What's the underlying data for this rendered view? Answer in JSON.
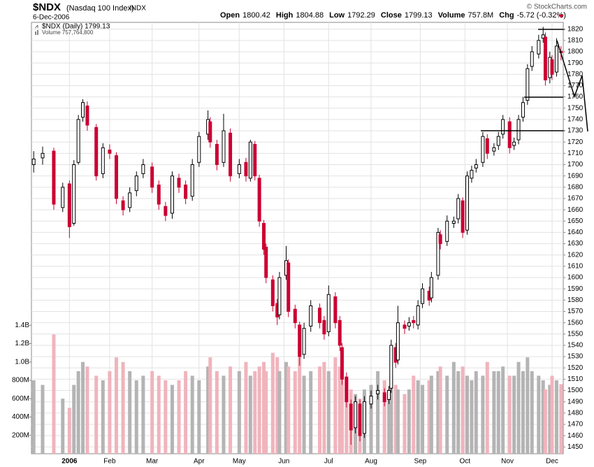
{
  "chart_data": {
    "type": "candlestick",
    "title": "$NDX",
    "subtitle": "(Nasdaq 100 Index)",
    "exchange": "INDX",
    "date": "6-Dec-2006",
    "credit": "© StockCharts.com",
    "stats": [
      {
        "label": "Open",
        "value": "1800.42"
      },
      {
        "label": "High",
        "value": "1804.88"
      },
      {
        "label": "Low",
        "value": "1792.29"
      },
      {
        "label": "Close",
        "value": "1799.13"
      },
      {
        "label": "Volume",
        "value": "757.8M"
      },
      {
        "label": "Chg",
        "value": "-5.72 (-0.32%)"
      }
    ],
    "legend": {
      "price_label": "$NDX (Daily) 1799.13",
      "volume_label": "Volume 757,764,800"
    },
    "x": [
      0,
      4,
      9,
      13,
      16,
      18,
      20,
      22,
      24,
      28,
      31,
      34,
      37,
      40,
      43,
      46,
      49,
      53,
      56,
      59,
      62,
      65,
      68,
      71,
      74,
      78,
      79,
      82,
      85,
      88,
      92,
      95,
      97,
      99,
      101,
      103,
      104,
      107,
      109,
      110,
      113,
      114,
      117,
      119,
      121,
      124,
      128,
      130,
      132,
      135,
      137,
      138,
      140,
      142,
      144,
      146,
      148,
      151,
      154,
      157,
      159,
      160,
      162,
      163,
      166,
      168,
      170,
      172,
      174,
      177,
      178,
      181,
      182,
      185,
      188,
      190,
      192,
      194,
      196,
      198,
      201,
      203,
      206,
      208,
      210,
      213,
      215,
      217,
      219,
      221,
      223,
      226,
      228,
      229,
      231,
      232,
      234,
      236
    ],
    "open": [
      1700,
      1706,
      1712,
      1662,
      1683,
      1648,
      1702,
      1742,
      1752,
      1733,
      1692,
      1713,
      1708,
      1668,
      1662,
      1677,
      1692,
      1698,
      1682,
      1663,
      1657,
      1688,
      1682,
      1672,
      1702,
      1727,
      1738,
      1718,
      1702,
      1728,
      1692,
      1702,
      1688,
      1718,
      1688,
      1648,
      1627,
      1598,
      1577,
      1567,
      1602,
      1613,
      1572,
      1558,
      1532,
      1557,
      1573,
      1562,
      1552,
      1583,
      1562,
      1538,
      1512,
      1488,
      1467,
      1488,
      1462,
      1488,
      1497,
      1498,
      1492,
      1502,
      1538,
      1527,
      1558,
      1557,
      1562,
      1558,
      1577,
      1588,
      1582,
      1602,
      1638,
      1632,
      1648,
      1652,
      1668,
      1642,
      1688,
      1697,
      1702,
      1723,
      1712,
      1717,
      1727,
      1738,
      1717,
      1722,
      1742,
      1757,
      1787,
      1798,
      1812,
      1813,
      1777,
      1793,
      1782,
      1800.42
    ],
    "high": [
      1712,
      1716,
      1715,
      1684,
      1686,
      1704,
      1744,
      1758,
      1756,
      1736,
      1719,
      1718,
      1711,
      1672,
      1680,
      1694,
      1705,
      1702,
      1686,
      1667,
      1694,
      1692,
      1686,
      1705,
      1729,
      1748,
      1742,
      1722,
      1745,
      1732,
      1705,
      1706,
      1722,
      1721,
      1691,
      1651,
      1630,
      1602,
      1581,
      1605,
      1628,
      1616,
      1576,
      1561,
      1560,
      1580,
      1577,
      1566,
      1593,
      1587,
      1566,
      1542,
      1516,
      1492,
      1495,
      1492,
      1495,
      1500,
      1505,
      1502,
      1504,
      1545,
      1542,
      1575,
      1562,
      1565,
      1566,
      1580,
      1595,
      1592,
      1605,
      1644,
      1642,
      1655,
      1654,
      1674,
      1671,
      1694,
      1699,
      1705,
      1729,
      1727,
      1719,
      1729,
      1744,
      1742,
      1724,
      1744,
      1760,
      1789,
      1805,
      1815,
      1822,
      1817,
      1800,
      1797,
      1812,
      1804.88
    ],
    "low": [
      1693,
      1700,
      1660,
      1658,
      1635,
      1646,
      1700,
      1738,
      1730,
      1686,
      1688,
      1705,
      1665,
      1655,
      1658,
      1672,
      1688,
      1675,
      1660,
      1650,
      1652,
      1675,
      1665,
      1668,
      1698,
      1722,
      1715,
      1695,
      1698,
      1685,
      1688,
      1685,
      1685,
      1686,
      1645,
      1620,
      1595,
      1570,
      1558,
      1563,
      1598,
      1565,
      1555,
      1522,
      1528,
      1552,
      1555,
      1545,
      1548,
      1555,
      1535,
      1505,
      1485,
      1452,
      1462,
      1455,
      1458,
      1484,
      1492,
      1486,
      1488,
      1498,
      1520,
      1523,
      1550,
      1553,
      1555,
      1554,
      1573,
      1575,
      1578,
      1598,
      1625,
      1628,
      1644,
      1648,
      1635,
      1638,
      1684,
      1693,
      1698,
      1705,
      1708,
      1713,
      1723,
      1710,
      1713,
      1718,
      1738,
      1753,
      1783,
      1794,
      1808,
      1770,
      1772,
      1775,
      1778,
      1792.29
    ],
    "close": [
      1705,
      1710,
      1665,
      1680,
      1645,
      1700,
      1740,
      1755,
      1735,
      1690,
      1715,
      1710,
      1670,
      1660,
      1675,
      1690,
      1700,
      1680,
      1665,
      1655,
      1690,
      1680,
      1670,
      1700,
      1725,
      1740,
      1720,
      1700,
      1730,
      1690,
      1700,
      1690,
      1720,
      1690,
      1650,
      1625,
      1600,
      1575,
      1565,
      1600,
      1615,
      1570,
      1560,
      1530,
      1555,
      1575,
      1560,
      1550,
      1585,
      1560,
      1540,
      1510,
      1490,
      1465,
      1490,
      1460,
      1490,
      1495,
      1500,
      1490,
      1500,
      1540,
      1525,
      1560,
      1555,
      1560,
      1560,
      1575,
      1590,
      1580,
      1600,
      1640,
      1630,
      1650,
      1650,
      1670,
      1640,
      1690,
      1695,
      1700,
      1725,
      1710,
      1715,
      1725,
      1740,
      1715,
      1720,
      1740,
      1755,
      1785,
      1800,
      1810,
      1815,
      1775,
      1795,
      1780,
      1805,
      1799.13
    ],
    "volume": [
      800,
      750,
      1300,
      600,
      500,
      750,
      900,
      1000,
      950,
      850,
      800,
      900,
      1050,
      1000,
      900,
      800,
      850,
      900,
      850,
      800,
      750,
      800,
      900,
      850,
      800,
      950,
      1050,
      900,
      850,
      950,
      900,
      1000,
      850,
      900,
      950,
      1000,
      900,
      1100,
      1050,
      900,
      1000,
      950,
      900,
      1050,
      850,
      900,
      950,
      1000,
      900,
      1050,
      950,
      900,
      800,
      700,
      650,
      600,
      700,
      750,
      900,
      800,
      700,
      850,
      750,
      700,
      650,
      700,
      850,
      800,
      750,
      800,
      850,
      900,
      950,
      850,
      1000,
      900,
      950,
      850,
      800,
      900,
      850,
      1000,
      900,
      900,
      950,
      850,
      850,
      1000,
      900,
      1050,
      900,
      850,
      800,
      700,
      750,
      850,
      800,
      757.7648
    ],
    "up_color": "#000000",
    "down_color": "#cc0033",
    "volume_up_color": "#b4b4b4",
    "volume_down_color": "#f0b4bc",
    "xlim": [
      -1,
      237
    ],
    "xticks": [
      {
        "value": 16,
        "label": "2006"
      },
      {
        "value": 34,
        "label": "Feb"
      },
      {
        "value": 53,
        "label": "Mar"
      },
      {
        "value": 74,
        "label": "Apr"
      },
      {
        "value": 92,
        "label": "May"
      },
      {
        "value": 112,
        "label": "Jun"
      },
      {
        "value": 132,
        "label": "Jul"
      },
      {
        "value": 151,
        "label": "Aug"
      },
      {
        "value": 173,
        "label": "Sep"
      },
      {
        "value": 193,
        "label": "Oct"
      },
      {
        "value": 212,
        "label": "Nov"
      },
      {
        "value": 232,
        "label": "Dec"
      }
    ],
    "ylim": [
      1444,
      1826
    ],
    "yticks": [
      1450,
      1460,
      1470,
      1480,
      1490,
      1500,
      1510,
      1520,
      1530,
      1540,
      1550,
      1560,
      1570,
      1580,
      1590,
      1600,
      1610,
      1620,
      1630,
      1640,
      1650,
      1660,
      1670,
      1680,
      1690,
      1700,
      1710,
      1720,
      1730,
      1740,
      1750,
      1760,
      1770,
      1780,
      1790,
      1800,
      1810,
      1820
    ],
    "vlim": [
      0,
      4700
    ],
    "vticks": [
      {
        "value": 200,
        "label": "200M"
      },
      {
        "value": 400,
        "label": "400M"
      },
      {
        "value": 600,
        "label": "600M"
      },
      {
        "value": 800,
        "label": "800M"
      },
      {
        "value": 1000,
        "label": "1.0B"
      },
      {
        "value": 1200,
        "label": "1.2B"
      },
      {
        "value": 1400,
        "label": "1.4B"
      }
    ],
    "grid": true
  }
}
